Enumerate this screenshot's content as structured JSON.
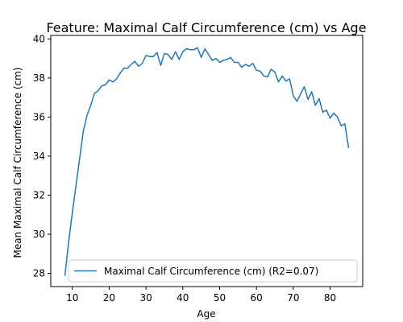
{
  "chart_data": {
    "type": "line",
    "title": "Feature: Maximal Calf Circumference (cm) vs Age",
    "xlabel": "Age",
    "ylabel": "Mean Maximal Calf Circumference (cm)",
    "xlim": [
      4.15,
      88.85
    ],
    "ylim": [
      27.32,
      40.18
    ],
    "xticks": [
      10,
      20,
      30,
      40,
      50,
      60,
      70,
      80
    ],
    "yticks": [
      28,
      30,
      32,
      34,
      36,
      38,
      40
    ],
    "grid": false,
    "legend_position": "lower center",
    "line_color": "#1f77b4",
    "series": [
      {
        "name": "Maximal Calf Circumference (cm) (R2=0.07)",
        "x": [
          8,
          9,
          10,
          11,
          12,
          13,
          14,
          15,
          16,
          17,
          18,
          19,
          20,
          21,
          22,
          23,
          24,
          25,
          26,
          27,
          28,
          29,
          30,
          31,
          32,
          33,
          34,
          35,
          36,
          37,
          38,
          39,
          40,
          41,
          42,
          43,
          44,
          45,
          46,
          47,
          48,
          49,
          50,
          51,
          52,
          53,
          54,
          55,
          56,
          57,
          58,
          59,
          60,
          61,
          62,
          63,
          64,
          65,
          66,
          67,
          68,
          69,
          70,
          71,
          72,
          73,
          74,
          75,
          76,
          77,
          78,
          79,
          80,
          81,
          82,
          83,
          84,
          85
        ],
        "y": [
          27.9,
          29.6,
          31.1,
          32.5,
          33.9,
          35.3,
          36.1,
          36.6,
          37.2,
          37.35,
          37.6,
          37.65,
          37.9,
          37.8,
          37.95,
          38.25,
          38.5,
          38.5,
          38.7,
          38.85,
          38.6,
          38.75,
          39.15,
          39.1,
          39.1,
          39.3,
          38.65,
          39.25,
          39.2,
          38.95,
          39.35,
          38.95,
          39.35,
          39.5,
          39.45,
          39.45,
          39.55,
          39.05,
          39.5,
          39.2,
          38.9,
          39.0,
          38.8,
          38.9,
          38.95,
          39.05,
          38.8,
          38.8,
          38.55,
          38.7,
          38.6,
          38.75,
          38.4,
          38.35,
          38.1,
          38.05,
          38.45,
          38.3,
          37.8,
          38.1,
          37.85,
          37.95,
          37.1,
          36.8,
          37.2,
          37.55,
          36.9,
          37.3,
          36.6,
          36.95,
          36.25,
          36.35,
          35.95,
          36.2,
          36.0,
          35.55,
          35.65,
          34.45
        ]
      }
    ]
  }
}
